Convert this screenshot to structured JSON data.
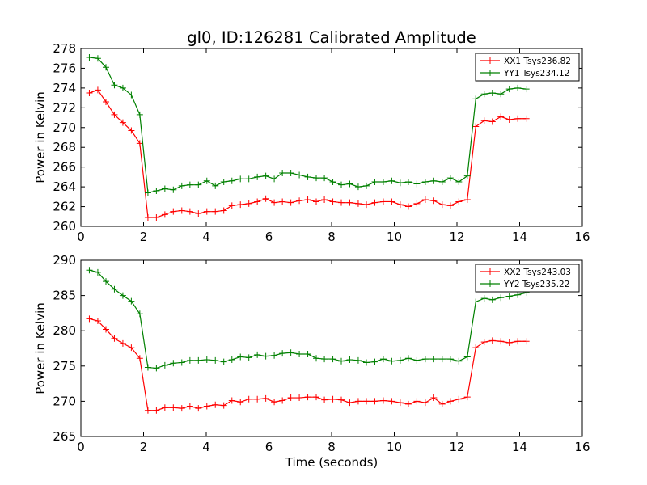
{
  "figure": {
    "title": "gl0, ID:126281 Calibrated Amplitude"
  },
  "chart_data": [
    {
      "type": "line",
      "title": "gl0, ID:126281 Calibrated Amplitude",
      "xlabel": "",
      "ylabel": "Power in Kelvin",
      "xlim": [
        0,
        16
      ],
      "ylim": [
        260,
        278
      ],
      "xticks": [
        0,
        2,
        4,
        6,
        8,
        10,
        12,
        14,
        16
      ],
      "yticks": [
        260,
        262,
        264,
        266,
        268,
        270,
        272,
        274,
        276,
        278
      ],
      "grid": false,
      "legend_position": "top-right",
      "x": [
        0.27,
        0.54,
        0.8,
        1.07,
        1.34,
        1.61,
        1.88,
        2.14,
        2.41,
        2.68,
        2.95,
        3.22,
        3.48,
        3.75,
        4.02,
        4.29,
        4.56,
        4.82,
        5.09,
        5.36,
        5.63,
        5.9,
        6.17,
        6.43,
        6.7,
        6.97,
        7.24,
        7.51,
        7.77,
        8.04,
        8.31,
        8.58,
        8.85,
        9.11,
        9.38,
        9.65,
        9.92,
        10.19,
        10.45,
        10.72,
        10.99,
        11.26,
        11.53,
        11.79,
        12.06,
        12.33,
        12.6,
        12.87,
        13.13,
        13.4,
        13.67,
        13.94,
        14.21
      ],
      "series": [
        {
          "name": "XX1 Tsys236.82",
          "color": "#ff0000",
          "values": [
            273.5,
            273.8,
            272.6,
            271.3,
            270.5,
            269.7,
            268.4,
            260.9,
            260.9,
            261.2,
            261.5,
            261.6,
            261.5,
            261.3,
            261.5,
            261.5,
            261.6,
            262.1,
            262.2,
            262.3,
            262.5,
            262.8,
            262.4,
            262.5,
            262.4,
            262.6,
            262.7,
            262.5,
            262.7,
            262.5,
            262.4,
            262.4,
            262.3,
            262.2,
            262.4,
            262.5,
            262.5,
            262.2,
            262.0,
            262.3,
            262.7,
            262.6,
            262.2,
            262.1,
            262.5,
            262.7,
            270.1,
            270.7,
            270.6,
            271.1,
            270.8,
            270.9,
            270.9
          ]
        },
        {
          "name": "YY1 Tsys234.12",
          "color": "#008000",
          "values": [
            277.1,
            277.0,
            276.1,
            274.3,
            274.0,
            273.3,
            271.3,
            263.4,
            263.6,
            263.8,
            263.7,
            264.1,
            264.2,
            264.2,
            264.6,
            264.1,
            264.5,
            264.6,
            264.8,
            264.8,
            265.0,
            265.1,
            264.8,
            265.4,
            265.4,
            265.2,
            265.0,
            264.9,
            264.9,
            264.5,
            264.2,
            264.3,
            264.0,
            264.1,
            264.5,
            264.5,
            264.6,
            264.4,
            264.5,
            264.3,
            264.5,
            264.6,
            264.5,
            264.9,
            264.5,
            265.1,
            272.9,
            273.4,
            273.5,
            273.4,
            273.9,
            274.0,
            273.9
          ]
        }
      ]
    },
    {
      "type": "line",
      "title": "",
      "xlabel": "Time (seconds)",
      "ylabel": "Power in Kelvin",
      "xlim": [
        0,
        16
      ],
      "ylim": [
        265,
        290
      ],
      "xticks": [
        0,
        2,
        4,
        6,
        8,
        10,
        12,
        14,
        16
      ],
      "yticks": [
        265,
        270,
        275,
        280,
        285,
        290
      ],
      "grid": false,
      "legend_position": "top-right",
      "x": [
        0.27,
        0.54,
        0.8,
        1.07,
        1.34,
        1.61,
        1.88,
        2.14,
        2.41,
        2.68,
        2.95,
        3.22,
        3.48,
        3.75,
        4.02,
        4.29,
        4.56,
        4.82,
        5.09,
        5.36,
        5.63,
        5.9,
        6.17,
        6.43,
        6.7,
        6.97,
        7.24,
        7.51,
        7.77,
        8.04,
        8.31,
        8.58,
        8.85,
        9.11,
        9.38,
        9.65,
        9.92,
        10.19,
        10.45,
        10.72,
        10.99,
        11.26,
        11.53,
        11.79,
        12.06,
        12.33,
        12.6,
        12.87,
        13.13,
        13.4,
        13.67,
        13.94,
        14.21
      ],
      "series": [
        {
          "name": "XX2 Tsys243.03",
          "color": "#ff0000",
          "values": [
            281.7,
            281.4,
            280.2,
            278.9,
            278.2,
            277.6,
            276.1,
            268.7,
            268.7,
            269.1,
            269.1,
            269.0,
            269.3,
            269.0,
            269.3,
            269.5,
            269.4,
            270.1,
            269.9,
            270.3,
            270.3,
            270.4,
            269.9,
            270.1,
            270.5,
            270.5,
            270.6,
            270.6,
            270.2,
            270.3,
            270.2,
            269.8,
            270.0,
            270.0,
            270.0,
            270.1,
            270.0,
            269.8,
            269.6,
            270.0,
            269.8,
            270.5,
            269.6,
            270.0,
            270.3,
            270.6,
            277.6,
            278.4,
            278.6,
            278.5,
            278.3,
            278.5,
            278.5
          ]
        },
        {
          "name": "YY2 Tsys235.22",
          "color": "#008000",
          "values": [
            288.6,
            288.3,
            287.0,
            285.9,
            285.0,
            284.2,
            282.4,
            274.8,
            274.7,
            275.1,
            275.4,
            275.5,
            275.8,
            275.8,
            275.9,
            275.8,
            275.6,
            275.9,
            276.3,
            276.2,
            276.6,
            276.4,
            276.5,
            276.8,
            276.9,
            276.7,
            276.7,
            276.1,
            276.0,
            276.0,
            275.7,
            275.9,
            275.8,
            275.5,
            275.6,
            276.0,
            275.7,
            275.8,
            276.1,
            275.8,
            276.0,
            276.0,
            276.0,
            276.0,
            275.7,
            276.3,
            284.1,
            284.6,
            284.4,
            284.7,
            284.9,
            285.1,
            285.4
          ]
        }
      ]
    }
  ]
}
